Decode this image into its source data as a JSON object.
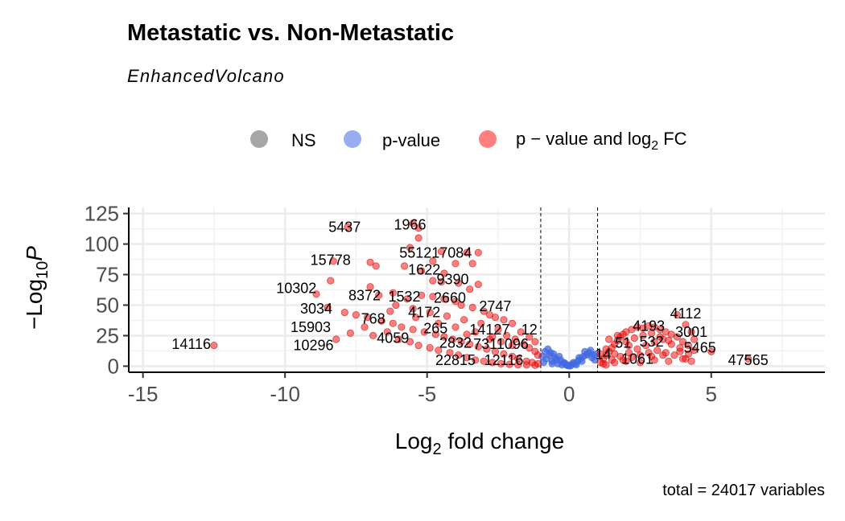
{
  "chart_data": {
    "type": "scatter",
    "title": "Metastatic vs. Non-Metastatic",
    "subtitle": "EnhancedVolcano",
    "xlabel_prefix": "Log",
    "xlabel_sub": "2",
    "xlabel_suffix": " fold change",
    "ylabel_prefix": "−Log",
    "ylabel_sub": "10",
    "ylabel_var": "P",
    "caption": "total = 24017 variables",
    "xlim": [
      -15.5,
      9
    ],
    "ylim": [
      -5,
      130
    ],
    "xticks": [
      -15,
      -10,
      -5,
      0,
      5
    ],
    "xtick_labels": [
      "-15",
      "-10",
      "-5",
      "0",
      "5"
    ],
    "yticks": [
      0,
      25,
      50,
      75,
      100,
      125
    ],
    "ytick_labels": [
      "0",
      "25",
      "50",
      "75",
      "100",
      "125"
    ],
    "fc_cutoff": [
      -1,
      1
    ],
    "grid": true,
    "legend_position": "top",
    "legend": [
      {
        "key": "NS",
        "label": "NS",
        "color": "#808080"
      },
      {
        "key": "pvalue",
        "label": "p-value",
        "color": "#4169E1"
      },
      {
        "key": "both",
        "label_prefix": "p − value and log",
        "label_sub": "2",
        "label_suffix": " FC",
        "color": "#FF0000"
      }
    ],
    "series": [
      {
        "name": "p-value",
        "color": "#4169E1",
        "points": [
          [
            -0.9,
            3
          ],
          [
            -0.8,
            6
          ],
          [
            -0.7,
            9
          ],
          [
            -0.6,
            4
          ],
          [
            -0.5,
            7
          ],
          [
            -0.4,
            2
          ],
          [
            -0.3,
            5
          ],
          [
            -0.2,
            3
          ],
          [
            -0.1,
            1
          ],
          [
            0,
            0.5
          ],
          [
            0.1,
            1.5
          ],
          [
            0.2,
            2
          ],
          [
            0.3,
            4
          ],
          [
            0.4,
            6
          ],
          [
            0.5,
            8
          ],
          [
            0.6,
            9
          ],
          [
            0.7,
            11
          ],
          [
            0.8,
            7
          ],
          [
            0.9,
            5
          ],
          [
            -0.85,
            12
          ],
          [
            -0.75,
            14
          ],
          [
            -0.65,
            11
          ],
          [
            -0.55,
            10
          ],
          [
            0.55,
            12
          ],
          [
            0.65,
            10
          ],
          [
            0.75,
            13
          ],
          [
            0.85,
            9
          ],
          [
            -0.35,
            8
          ],
          [
            0.35,
            7
          ],
          [
            0.15,
            3
          ],
          [
            -0.15,
            2.5
          ],
          [
            -0.95,
            8
          ],
          [
            0.95,
            10
          ],
          [
            -0.45,
            5
          ],
          [
            0.45,
            4
          ],
          [
            -0.25,
            1
          ],
          [
            0.25,
            1.2
          ],
          [
            0.05,
            0.3
          ],
          [
            -0.05,
            0.4
          ],
          [
            -0.6,
            2
          ]
        ]
      },
      {
        "name": "p-value and log2 FC",
        "color": "#FF0000",
        "points": [
          [
            -12.5,
            17
          ],
          [
            -7.8,
            114
          ],
          [
            -5.5,
            117
          ],
          [
            -5.3,
            113
          ],
          [
            -5.3,
            105
          ],
          [
            -5.6,
            97
          ],
          [
            -4.5,
            94
          ],
          [
            -3.6,
            93
          ],
          [
            -3.2,
            93
          ],
          [
            -4.8,
            86
          ],
          [
            -4.0,
            84
          ],
          [
            -3.4,
            84
          ],
          [
            -8.3,
            86
          ],
          [
            -8.4,
            70
          ],
          [
            -7.0,
            85
          ],
          [
            -6.8,
            82
          ],
          [
            -5.8,
            82
          ],
          [
            -5.2,
            78
          ],
          [
            -4.4,
            76
          ],
          [
            -4.8,
            70
          ],
          [
            -4.5,
            69
          ],
          [
            -3.9,
            68
          ],
          [
            -3.2,
            67
          ],
          [
            -3.5,
            63
          ],
          [
            -8.9,
            59
          ],
          [
            -7.0,
            65
          ],
          [
            -6.7,
            58
          ],
          [
            -6.2,
            60
          ],
          [
            -5.7,
            55
          ],
          [
            -5.2,
            58
          ],
          [
            -4.8,
            57
          ],
          [
            -4.4,
            55
          ],
          [
            -4.0,
            53
          ],
          [
            -3.8,
            50
          ],
          [
            -3.4,
            48
          ],
          [
            -3.0,
            45
          ],
          [
            -2.8,
            42
          ],
          [
            -2.6,
            40
          ],
          [
            -2.3,
            38
          ],
          [
            -2.0,
            35
          ],
          [
            -8.5,
            48
          ],
          [
            -7.9,
            44
          ],
          [
            -7.5,
            42
          ],
          [
            -7.1,
            40
          ],
          [
            -6.6,
            37
          ],
          [
            -6.2,
            35
          ],
          [
            -5.9,
            32
          ],
          [
            -5.5,
            30
          ],
          [
            -5.1,
            28
          ],
          [
            -4.7,
            26
          ],
          [
            -4.4,
            24
          ],
          [
            -4.1,
            22
          ],
          [
            -3.8,
            20
          ],
          [
            -3.5,
            18
          ],
          [
            -3.2,
            16
          ],
          [
            -2.9,
            14
          ],
          [
            -2.6,
            12
          ],
          [
            -2.3,
            10
          ],
          [
            -2.0,
            8
          ],
          [
            -1.8,
            6
          ],
          [
            -1.5,
            4
          ],
          [
            -1.3,
            3
          ],
          [
            -1.1,
            2
          ],
          [
            -8.2,
            22
          ],
          [
            -7.7,
            27
          ],
          [
            -7.2,
            32
          ],
          [
            -6.9,
            25
          ],
          [
            -6.4,
            28
          ],
          [
            -6.0,
            22
          ],
          [
            -5.6,
            20
          ],
          [
            -5.3,
            17
          ],
          [
            -4.9,
            15
          ],
          [
            -4.6,
            13
          ],
          [
            -4.2,
            11
          ],
          [
            -3.9,
            9
          ],
          [
            -3.6,
            7
          ],
          [
            -3.3,
            5
          ],
          [
            -3.0,
            4
          ],
          [
            -2.7,
            3
          ],
          [
            -2.4,
            2
          ],
          [
            -2.1,
            1.5
          ],
          [
            -1.8,
            1.2
          ],
          [
            -1.5,
            1
          ],
          [
            -1.2,
            0.8
          ],
          [
            -2.2,
            25
          ],
          [
            -1.9,
            22
          ],
          [
            -1.6,
            18
          ],
          [
            -1.4,
            15
          ],
          [
            -1.2,
            12
          ],
          [
            -1.1,
            9
          ],
          [
            -2.5,
            30
          ],
          [
            -3.1,
            35
          ],
          [
            -3.7,
            38
          ],
          [
            -4.3,
            41
          ],
          [
            -4.9,
            44
          ],
          [
            -5.5,
            47
          ],
          [
            -6.1,
            50
          ],
          [
            -2.8,
            22
          ],
          [
            -3.3,
            28
          ],
          [
            -4.0,
            32
          ],
          [
            -1.7,
            28
          ],
          [
            -1.4,
            24
          ],
          [
            -1.2,
            20
          ],
          [
            -2.0,
            17
          ],
          [
            -2.4,
            20
          ],
          [
            -2.7,
            24
          ],
          [
            -3.6,
            26
          ],
          [
            -4.6,
            35
          ],
          [
            -5.4,
            40
          ],
          [
            -6.3,
            45
          ],
          [
            1.1,
            3
          ],
          [
            1.2,
            6
          ],
          [
            1.3,
            9
          ],
          [
            1.4,
            12
          ],
          [
            1.5,
            15
          ],
          [
            1.6,
            18
          ],
          [
            1.7,
            21
          ],
          [
            1.8,
            24
          ],
          [
            1.9,
            26
          ],
          [
            2.0,
            28
          ],
          [
            2.2,
            30
          ],
          [
            2.4,
            32
          ],
          [
            2.6,
            31
          ],
          [
            2.8,
            33
          ],
          [
            3.0,
            32
          ],
          [
            3.2,
            30
          ],
          [
            3.4,
            28
          ],
          [
            3.6,
            26
          ],
          [
            3.8,
            24
          ],
          [
            4.0,
            20
          ],
          [
            4.2,
            17
          ],
          [
            4.4,
            13
          ],
          [
            1.2,
            2
          ],
          [
            1.5,
            5
          ],
          [
            1.8,
            8
          ],
          [
            2.1,
            11
          ],
          [
            2.4,
            14
          ],
          [
            2.7,
            17
          ],
          [
            3.0,
            20
          ],
          [
            3.3,
            22
          ],
          [
            3.6,
            18
          ],
          [
            3.9,
            15
          ],
          [
            4.2,
            10
          ],
          [
            1.3,
            1
          ],
          [
            1.6,
            3
          ],
          [
            1.9,
            5
          ],
          [
            2.2,
            7
          ],
          [
            2.5,
            9
          ],
          [
            2.8,
            11
          ],
          [
            3.1,
            13
          ],
          [
            3.4,
            11
          ],
          [
            3.7,
            9
          ],
          [
            4.0,
            6
          ],
          [
            4.3,
            4
          ],
          [
            2.0,
            20
          ],
          [
            2.3,
            23
          ],
          [
            2.6,
            25
          ],
          [
            2.9,
            27
          ],
          [
            3.2,
            24
          ],
          [
            3.5,
            21
          ],
          [
            3.8,
            42
          ],
          [
            4.1,
            34
          ],
          [
            4.3,
            28
          ],
          [
            4.4,
            22
          ],
          [
            6.3,
            6
          ],
          [
            5.0,
            12
          ],
          [
            1.1,
            10
          ],
          [
            1.3,
            14
          ],
          [
            1.6,
            10
          ],
          [
            2.0,
            4
          ],
          [
            2.5,
            3
          ],
          [
            3.0,
            5
          ],
          [
            3.5,
            4
          ],
          [
            4.1,
            6
          ],
          [
            1.4,
            22
          ],
          [
            1.7,
            25
          ],
          [
            2.1,
            17
          ],
          [
            2.9,
            8
          ],
          [
            3.3,
            9
          ],
          [
            3.9,
            12
          ]
        ]
      }
    ],
    "labels": [
      {
        "text": "5437",
        "x": -7.9,
        "y": 110
      },
      {
        "text": "1966",
        "x": -5.6,
        "y": 112
      },
      {
        "text": "551217084",
        "x": -4.7,
        "y": 89
      },
      {
        "text": "15778",
        "x": -8.4,
        "y": 83
      },
      {
        "text": "1622",
        "x": -5.1,
        "y": 75
      },
      {
        "text": "9390",
        "x": -4.1,
        "y": 67
      },
      {
        "text": "10302",
        "x": -9.6,
        "y": 60
      },
      {
        "text": "8372",
        "x": -7.2,
        "y": 54
      },
      {
        "text": "1532",
        "x": -5.8,
        "y": 53
      },
      {
        "text": "2660",
        "x": -4.2,
        "y": 52
      },
      {
        "text": "2747",
        "x": -2.6,
        "y": 45
      },
      {
        "text": "3034",
        "x": -8.9,
        "y": 43
      },
      {
        "text": "4172",
        "x": -5.1,
        "y": 40
      },
      {
        "text": "768",
        "x": -6.9,
        "y": 35
      },
      {
        "text": "15903",
        "x": -9.1,
        "y": 28
      },
      {
        "text": "265",
        "x": -4.7,
        "y": 27
      },
      {
        "text": "14127",
        "x": -2.8,
        "y": 26
      },
      {
        "text": "12",
        "x": -1.4,
        "y": 26
      },
      {
        "text": "4059",
        "x": -6.2,
        "y": 19
      },
      {
        "text": "2832",
        "x": -4.0,
        "y": 15
      },
      {
        "text": "7311096",
        "x": -2.4,
        "y": 14
      },
      {
        "text": "10296",
        "x": -9.0,
        "y": 13
      },
      {
        "text": "14116",
        "x": -13.3,
        "y": 14
      },
      {
        "text": "22815",
        "x": -4.0,
        "y": 1
      },
      {
        "text": "12116",
        "x": -2.3,
        "y": 1
      },
      {
        "text": "4112",
        "x": 4.1,
        "y": 39
      },
      {
        "text": "4193",
        "x": 2.8,
        "y": 29
      },
      {
        "text": "3001",
        "x": 4.3,
        "y": 24
      },
      {
        "text": "51",
        "x": 1.9,
        "y": 15
      },
      {
        "text": "532",
        "x": 2.9,
        "y": 16
      },
      {
        "text": "5465",
        "x": 4.6,
        "y": 11
      },
      {
        "text": "14",
        "x": 1.2,
        "y": 6
      },
      {
        "text": "1061",
        "x": 2.4,
        "y": 2
      },
      {
        "text": "47565",
        "x": 6.3,
        "y": 1
      }
    ]
  }
}
